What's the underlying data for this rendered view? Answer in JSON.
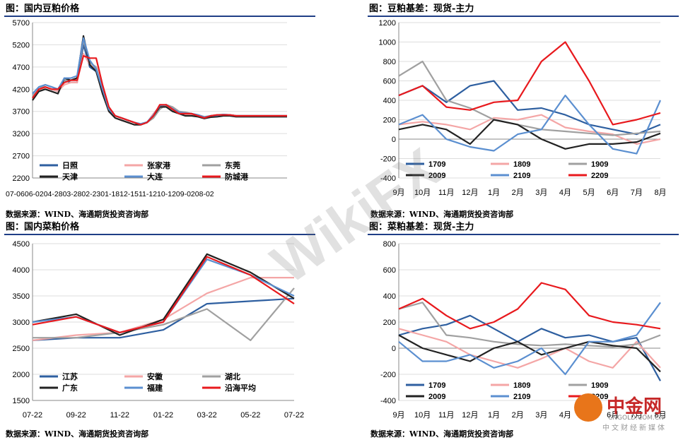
{
  "panels": [
    {
      "title": "图：国内豆粕价格",
      "source": "数据来源：WIND、海通期货投资咨询部",
      "chart_data": {
        "type": "line",
        "ylim": [
          2200,
          5700
        ],
        "yticks": [
          2200,
          2700,
          3200,
          3700,
          4200,
          4700,
          5200,
          5700
        ],
        "xtick_label": "07-0606-0204-2803-2802-2301-1812-1511-1210-1209-0208-02",
        "x": [
          0,
          1,
          2,
          3,
          4,
          5,
          6,
          7,
          8,
          9,
          10,
          11,
          12,
          13,
          14,
          15,
          16,
          17,
          18,
          19,
          20,
          21,
          22,
          23,
          24,
          25,
          26,
          27,
          28,
          29,
          30,
          31,
          32,
          33,
          34,
          35,
          36,
          37,
          38,
          39,
          40
        ],
        "legend_cols": 3,
        "series": [
          {
            "name": "日照",
            "color": "#2e5fa0",
            "values": [
              4000,
              4200,
              4250,
              4200,
              4150,
              4400,
              4350,
              4350,
              5200,
              4700,
              4600,
              4150,
              3700,
              3600,
              3550,
              3500,
              3450,
              3400,
              3450,
              3600,
              3800,
              3850,
              3750,
              3650,
              3650,
              3650,
              3600,
              3550,
              3600,
              3600,
              3620,
              3620,
              3600,
              3600,
              3600,
              3600,
              3600,
              3600,
              3600,
              3600,
              3600
            ]
          },
          {
            "name": "张家港",
            "color": "#f4a6a6",
            "values": [
              4000,
              4150,
              4250,
              4200,
              4150,
              4300,
              4350,
              4350,
              5000,
              4750,
              4650,
              4200,
              3700,
              3550,
              3500,
              3450,
              3400,
              3400,
              3450,
              3650,
              3820,
              3820,
              3750,
              3650,
              3620,
              3620,
              3600,
              3550,
              3580,
              3600,
              3620,
              3620,
              3600,
              3600,
              3600,
              3600,
              3600,
              3600,
              3600,
              3600,
              3600
            ]
          },
          {
            "name": "东莞",
            "color": "#a0a0a0",
            "values": [
              4050,
              4200,
              4300,
              4250,
              4200,
              4400,
              4400,
              4450,
              5300,
              4800,
              4700,
              4200,
              3750,
              3600,
              3550,
              3500,
              3450,
              3400,
              3450,
              3550,
              3750,
              3850,
              3800,
              3700,
              3680,
              3650,
              3620,
              3580,
              3600,
              3620,
              3630,
              3620,
              3600,
              3600,
              3600,
              3600,
              3600,
              3600,
              3600,
              3600,
              3600
            ]
          },
          {
            "name": "天津",
            "color": "#222222",
            "values": [
              3950,
              4150,
              4200,
              4150,
              4100,
              4450,
              4400,
              4450,
              5400,
              4750,
              4600,
              4100,
              3700,
              3550,
              3500,
              3450,
              3400,
              3400,
              3450,
              3600,
              3800,
              3800,
              3700,
              3650,
              3600,
              3600,
              3580,
              3540,
              3570,
              3580,
              3600,
              3600,
              3580,
              3580,
              3580,
              3580,
              3580,
              3580,
              3580,
              3580,
              3580
            ]
          },
          {
            "name": "大连",
            "color": "#5b8fd0",
            "values": [
              4100,
              4250,
              4300,
              4250,
              4200,
              4450,
              4450,
              4500,
              5350,
              4850,
              4650,
              4200,
              3750,
              3600,
              3550,
              3500,
              3450,
              3420,
              3460,
              3620,
              3830,
              3850,
              3760,
              3680,
              3660,
              3650,
              3620,
              3570,
              3600,
              3610,
              3630,
              3620,
              3600,
              3600,
              3600,
              3600,
              3600,
              3600,
              3600,
              3600,
              3600
            ]
          },
          {
            "name": "防城港",
            "color": "#e8191d",
            "values": [
              4000,
              4200,
              4250,
              4200,
              4200,
              4350,
              4400,
              4400,
              4950,
              4900,
              4900,
              4300,
              3800,
              3600,
              3550,
              3500,
              3450,
              3400,
              3450,
              3600,
              3850,
              3850,
              3750,
              3650,
              3650,
              3650,
              3600,
              3550,
              3600,
              3620,
              3620,
              3620,
              3600,
              3600,
              3600,
              3600,
              3600,
              3600,
              3600,
              3600,
              3600
            ]
          }
        ]
      }
    },
    {
      "title": "图：豆粕基差：现货-主力",
      "source": "数据来源：WIND、海通期货投资咨询部",
      "chart_data": {
        "type": "line",
        "ylim": [
          -400,
          1200
        ],
        "yticks": [
          -400,
          -200,
          0,
          200,
          400,
          600,
          800,
          1000,
          1200
        ],
        "xticks": [
          "9月",
          "10月",
          "11月",
          "12月",
          "1月",
          "2月",
          "3月",
          "4月",
          "5月",
          "6月",
          "7月",
          "8月"
        ],
        "x": [
          0,
          1,
          2,
          3,
          4,
          5,
          6,
          7,
          8,
          9,
          10,
          11
        ],
        "legend_cols": 3,
        "series": [
          {
            "name": "1709",
            "color": "#2e5fa0",
            "values": [
              450,
              550,
              380,
              550,
              600,
              300,
              320,
              250,
              150,
              100,
              50,
              150
            ]
          },
          {
            "name": "1809",
            "color": "#f4a6a6",
            "values": [
              150,
              180,
              150,
              100,
              220,
              200,
              250,
              120,
              80,
              50,
              -50,
              0
            ]
          },
          {
            "name": "1909",
            "color": "#a0a0a0",
            "values": [
              650,
              800,
              400,
              320,
              200,
              150,
              100,
              80,
              60,
              40,
              60,
              80
            ]
          },
          {
            "name": "2009",
            "color": "#222222",
            "values": [
              100,
              150,
              100,
              -50,
              200,
              150,
              0,
              -100,
              -50,
              -50,
              -30,
              60
            ]
          },
          {
            "name": "2109",
            "color": "#5b8fd0",
            "values": [
              150,
              250,
              0,
              -80,
              -120,
              50,
              100,
              450,
              150,
              -100,
              -150,
              400
            ]
          },
          {
            "name": "2209",
            "color": "#e8191d",
            "values": [
              450,
              550,
              330,
              300,
              380,
              400,
              800,
              1000,
              600,
              150,
              200,
              270
            ]
          }
        ]
      }
    },
    {
      "title": "图：国内菜粕价格",
      "source": "数据来源：WIND、海通期货投资咨询部",
      "chart_data": {
        "type": "line",
        "ylim": [
          1500,
          4500
        ],
        "yticks": [
          1500,
          2000,
          2500,
          3000,
          3500,
          4000,
          4500
        ],
        "xticks": [
          "07-22",
          "09-22",
          "11-22",
          "01-22",
          "03-22",
          "05-22",
          "07-22"
        ],
        "x": [
          0,
          1,
          2,
          3,
          4,
          5,
          6
        ],
        "legend_cols": 3,
        "series": [
          {
            "name": "江苏",
            "color": "#2e5fa0",
            "values": [
              2650,
              2700,
              2700,
              2850,
              3350,
              3400,
              3450
            ]
          },
          {
            "name": "安徽",
            "color": "#f4a6a6",
            "values": [
              2650,
              2750,
              2800,
              3050,
              3550,
              3850,
              3850
            ]
          },
          {
            "name": "湖北",
            "color": "#a0a0a0",
            "values": [
              2700,
              2700,
              2800,
              2950,
              3250,
              2650,
              3650
            ]
          },
          {
            "name": "广东",
            "color": "#222222",
            "values": [
              3000,
              3150,
              2750,
              3050,
              4300,
              3950,
              3450
            ]
          },
          {
            "name": "福建",
            "color": "#5b8fd0",
            "values": [
              3000,
              3100,
              2800,
              3000,
              4200,
              3900,
              3500
            ]
          },
          {
            "name": "沿海平均",
            "color": "#e8191d",
            "values": [
              2950,
              3100,
              2800,
              3000,
              4250,
              3900,
              3350
            ]
          }
        ]
      }
    },
    {
      "title": "图：菜粕基差：现货-主力",
      "source": "数据来源：WIND、海通期货投资咨询部",
      "chart_data": {
        "type": "line",
        "ylim": [
          -400,
          800
        ],
        "yticks": [
          -400,
          -200,
          0,
          200,
          400,
          600,
          800
        ],
        "xticks": [
          "9月",
          "10月",
          "11月",
          "12月",
          "1月",
          "2月",
          "3月",
          "4月",
          "5月",
          "6月",
          "7月",
          "8月"
        ],
        "x": [
          0,
          1,
          2,
          3,
          4,
          5,
          6,
          7,
          8,
          9,
          10,
          11
        ],
        "legend_cols": 3,
        "series": [
          {
            "name": "1709",
            "color": "#2e5fa0",
            "values": [
              100,
              150,
              180,
              250,
              150,
              50,
              150,
              80,
              100,
              50,
              80,
              -250
            ]
          },
          {
            "name": "1809",
            "color": "#f4a6a6",
            "values": [
              150,
              100,
              50,
              -50,
              -100,
              -150,
              -80,
              0,
              -100,
              -150,
              50,
              -150
            ]
          },
          {
            "name": "1909",
            "color": "#a0a0a0",
            "values": [
              300,
              350,
              100,
              80,
              50,
              30,
              20,
              30,
              20,
              10,
              30,
              100
            ]
          },
          {
            "name": "2009",
            "color": "#222222",
            "values": [
              100,
              0,
              -50,
              -100,
              0,
              50,
              -50,
              0,
              50,
              20,
              0,
              -180
            ]
          },
          {
            "name": "2109",
            "color": "#5b8fd0",
            "values": [
              50,
              -100,
              -100,
              -50,
              -150,
              -100,
              0,
              -200,
              50,
              50,
              100,
              350
            ]
          },
          {
            "name": "2209",
            "color": "#e8191d",
            "values": [
              300,
              380,
              250,
              150,
              200,
              300,
              500,
              450,
              250,
              200,
              180,
              150
            ]
          }
        ]
      }
    }
  ],
  "watermark": "WikiFX",
  "logo": {
    "name": "中金网",
    "domain": "CNGOLD.COM.CN",
    "sub": "中文财经新媒体"
  }
}
